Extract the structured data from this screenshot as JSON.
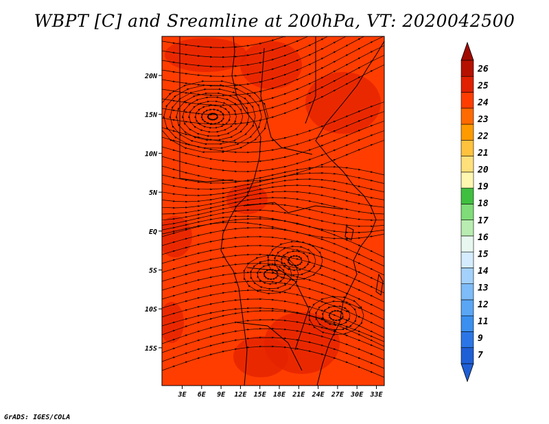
{
  "title": "WBPT [C] and Sreamline at 200hPa, VT: 2020042500",
  "footer": "GrADS: IGES/COLA",
  "map": {
    "background_color": "#ff3d00",
    "patch_color": "#e32200",
    "streamline_color": "#000000",
    "x_ticks": [
      "3E",
      "6E",
      "9E",
      "12E",
      "15E",
      "18E",
      "21E",
      "24E",
      "27E",
      "30E",
      "33E"
    ],
    "y_ticks": [
      "20N",
      "15N",
      "10N",
      "5N",
      "EQ",
      "5S",
      "10S",
      "15S"
    ]
  },
  "colorbar": {
    "labels": [
      "7",
      "9",
      "11",
      "12",
      "13",
      "14",
      "15",
      "16",
      "17",
      "18",
      "19",
      "20",
      "21",
      "22",
      "23",
      "24",
      "25",
      "26"
    ],
    "colors": [
      "#1f5fd6",
      "#2b76e6",
      "#3a8fef",
      "#5aa6f5",
      "#7dbcf8",
      "#a3d1fb",
      "#d4ecfd",
      "#e8f8f0",
      "#b8ecb0",
      "#7fdc78",
      "#3fbf3f",
      "#fff6b0",
      "#ffe07a",
      "#ffc23d",
      "#ff9a00",
      "#ff6a00",
      "#ff3d00",
      "#e02000",
      "#b51000"
    ],
    "tip_low_color": "#1f5fd6",
    "tip_high_color": "#a00c00"
  }
}
